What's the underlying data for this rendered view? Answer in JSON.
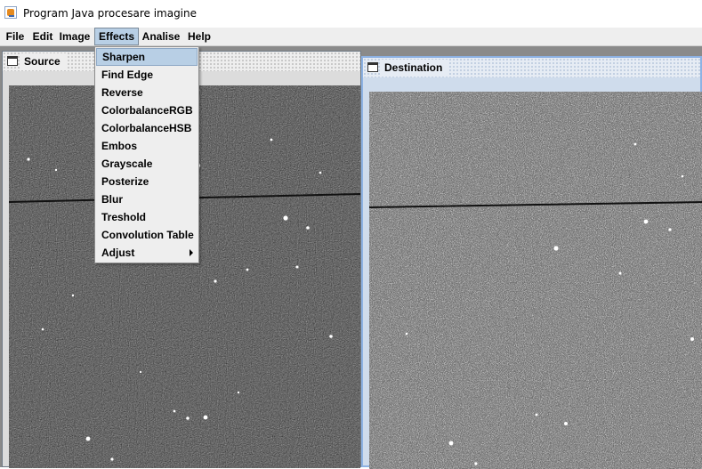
{
  "window": {
    "title": "Program Java procesare imagine",
    "icon": "java-app-icon"
  },
  "menubar": {
    "items": [
      {
        "label": "File"
      },
      {
        "label": "Edit"
      },
      {
        "label": "Image"
      },
      {
        "label": "Effects",
        "open": true
      },
      {
        "label": "Analise"
      },
      {
        "label": "Help"
      }
    ]
  },
  "effects_menu": {
    "items": [
      {
        "label": "Sharpen",
        "selected": true
      },
      {
        "label": "Find Edge"
      },
      {
        "label": "Reverse"
      },
      {
        "label": "ColorbalanceRGB"
      },
      {
        "label": "ColorbalanceHSB"
      },
      {
        "label": "Embos"
      },
      {
        "label": "Grayscale"
      },
      {
        "label": "Posterize"
      },
      {
        "label": "Blur"
      },
      {
        "label": "Treshold"
      },
      {
        "label": "Convolution Table"
      },
      {
        "label": "Adjust",
        "submenu": true
      }
    ]
  },
  "frames": {
    "source": {
      "title": "Source",
      "icon": "frame-icon"
    },
    "destination": {
      "title": "Destination",
      "icon": "frame-icon",
      "active": true
    }
  },
  "colors": {
    "menu_highlight": "#b8cfe5",
    "desktop": "#8a8a8a",
    "active_frame_border": "#8db2e3"
  }
}
